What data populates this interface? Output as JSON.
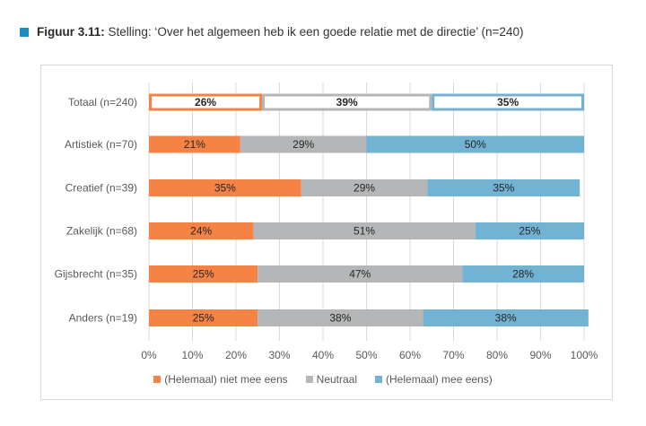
{
  "title": {
    "prefix": "Figuur 3.11:",
    "text": "Stelling: ‘Over het algemeen heb ik een goede relatie met de directie’ (n=240)",
    "marker_color": "#1b8fc0"
  },
  "chart_data": {
    "type": "bar",
    "orientation": "horizontal",
    "stacked": true,
    "title": "Stelling: ‘Over het algemeen heb ik een goede relatie met de directie’ (n=240)",
    "categories": [
      "Totaal (n=240)",
      "Artistiek (n=70)",
      "Creatief (n=39)",
      "Zakelijk (n=68)",
      "Gijsbrecht (n=35)",
      "Anders (n=19)"
    ],
    "series": [
      {
        "name": "(Helemaal) niet mee eens",
        "color": "#f58345",
        "values": [
          26,
          21,
          35,
          24,
          25,
          25
        ]
      },
      {
        "name": "Neutraal",
        "color": "#b4b6b7",
        "values": [
          39,
          29,
          29,
          51,
          47,
          38
        ]
      },
      {
        "name": "(Helemaal) mee eens)",
        "color": "#72b2d3",
        "values": [
          35,
          50,
          35,
          25,
          28,
          38
        ]
      }
    ],
    "data_labels": [
      [
        "26%",
        "39%",
        "35%"
      ],
      [
        "21%",
        "29%",
        "50%"
      ],
      [
        "35%",
        "29%",
        "35%"
      ],
      [
        "24%",
        "51%",
        "25%"
      ],
      [
        "25%",
        "47%",
        "28%"
      ],
      [
        "25%",
        "38%",
        "38%"
      ]
    ],
    "highlighted_category": "Totaal (n=240)",
    "xlim": [
      0,
      100
    ],
    "xticks": [
      "0%",
      "10%",
      "20%",
      "30%",
      "40%",
      "50%",
      "60%",
      "70%",
      "80%",
      "90%",
      "100%"
    ],
    "xlabel": "",
    "ylabel": "",
    "grid": true,
    "legend_position": "bottom"
  }
}
